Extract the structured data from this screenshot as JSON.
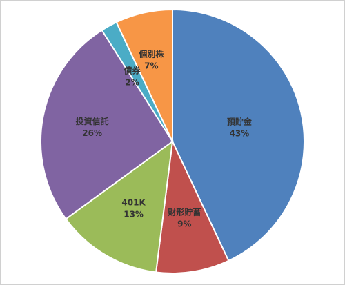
{
  "chart_data": {
    "type": "pie",
    "title": "",
    "start_angle_deg": 0,
    "direction": "clockwise",
    "slices": [
      {
        "label": "預貯金",
        "value": 43,
        "value_label": "43%",
        "color": "#4F81BD"
      },
      {
        "label": "財形貯蓄",
        "value": 9,
        "value_label": "9%",
        "color": "#C0504D"
      },
      {
        "label": "401K",
        "value": 13,
        "value_label": "13%",
        "color": "#9BBB59"
      },
      {
        "label": "投資信託",
        "value": 26,
        "value_label": "26%",
        "color": "#8064A2"
      },
      {
        "label": "債券",
        "value": 2,
        "value_label": "2%",
        "color": "#4BACC6"
      },
      {
        "label": "個別株",
        "value": 7,
        "value_label": "7%",
        "color": "#F79646"
      }
    ]
  }
}
